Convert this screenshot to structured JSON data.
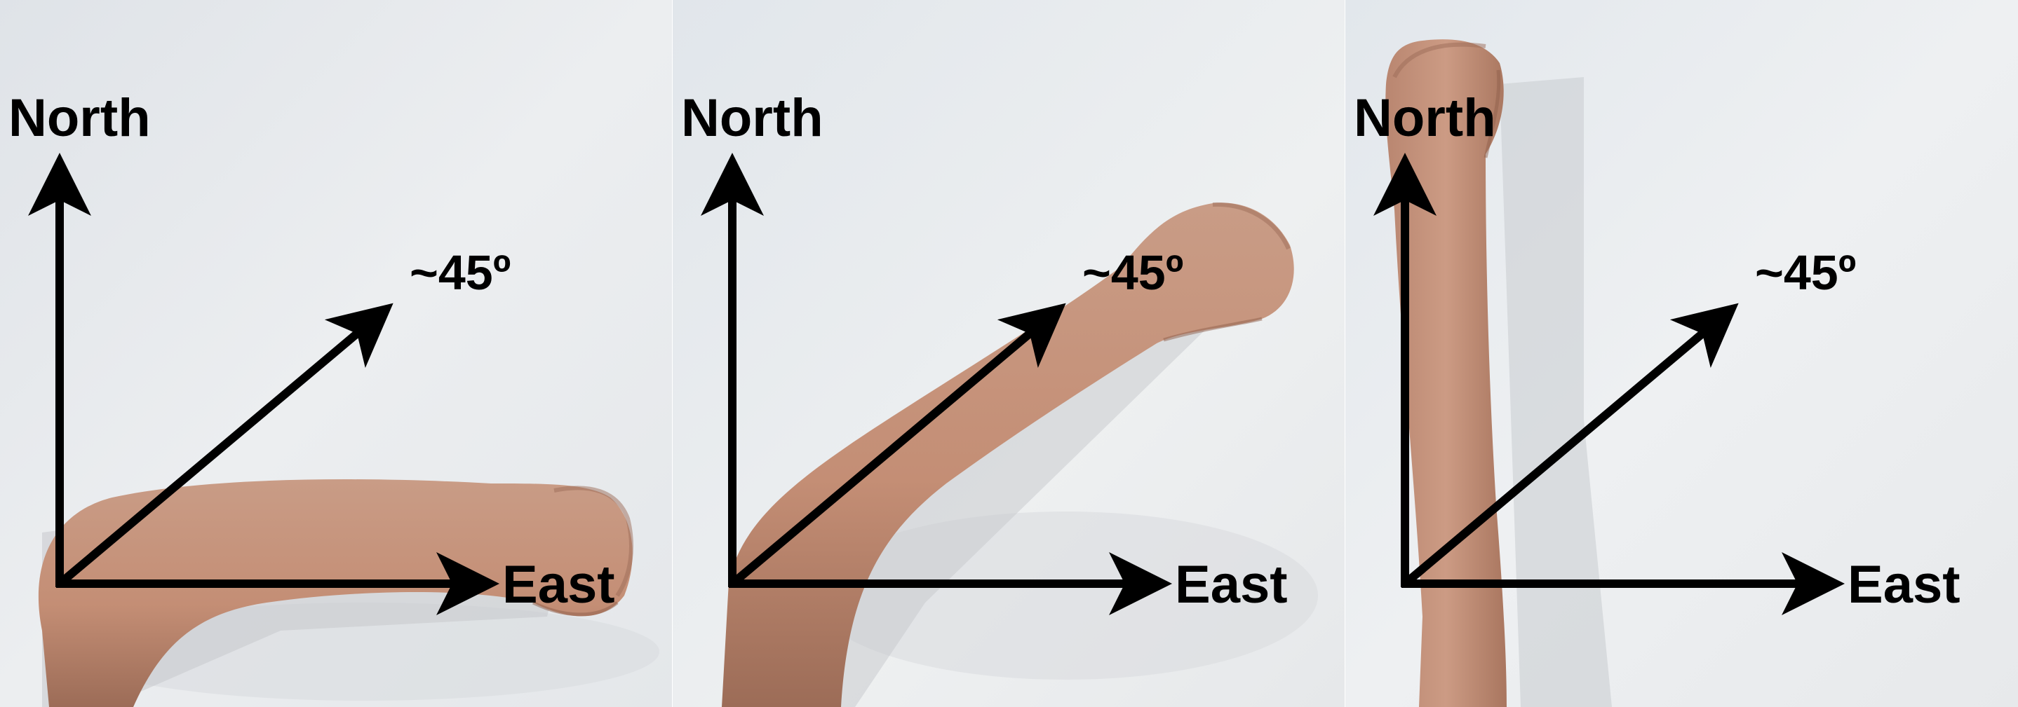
{
  "figure": {
    "labels": {
      "north": "North",
      "east": "East",
      "diagonal": "~45º"
    },
    "panels": [
      {
        "pose": "arm-pointing-east",
        "arm_angle_deg": 0
      },
      {
        "pose": "arm-pointing-45",
        "arm_angle_deg": 45
      },
      {
        "pose": "arm-pointing-north",
        "arm_angle_deg": 90
      }
    ],
    "colors": {
      "wall": "#e6e9ec",
      "skin": "#c8967e",
      "skin_shadow": "#a9765f",
      "arrow": "#000000"
    }
  }
}
